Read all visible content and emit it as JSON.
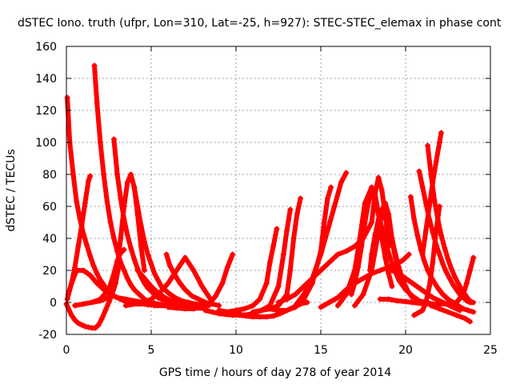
{
  "chart_data": {
    "type": "line",
    "title": "dSTEC Iono. truth (ufpr, Lon=310, Lat=-25, h=927): STEC-STEC_elemax in phase cont",
    "xlabel": "GPS time / hours of day 278 of year 2014",
    "ylabel": "dSTEC  / TECUs",
    "xlim": [
      0,
      25
    ],
    "ylim": [
      -20,
      160
    ],
    "xticks": [
      0,
      5,
      10,
      15,
      20,
      25
    ],
    "yticks": [
      -20,
      0,
      20,
      40,
      60,
      80,
      100,
      120,
      140,
      160
    ],
    "grid": true,
    "color": "#ff0000",
    "series": [
      {
        "x": [
          0.05,
          0.2,
          0.4,
          0.6,
          0.8,
          1.0,
          1.2,
          1.4,
          1.6,
          1.8,
          2.0,
          2.2,
          2.4,
          2.6,
          2.8,
          3.0,
          3.2,
          3.4,
          3.6,
          3.8,
          4.0,
          4.2,
          4.4,
          4.6,
          4.8,
          5.0,
          5.2,
          5.4,
          5.6,
          5.8
        ],
        "y": [
          128,
          100,
          80,
          63,
          52,
          43,
          36,
          29,
          23,
          18,
          14,
          11,
          8,
          6,
          4,
          3,
          2,
          1,
          0.5,
          0,
          -0.5,
          -1,
          -1,
          -1,
          -1.5,
          -1.5,
          -2,
          -2,
          -2,
          -2
        ]
      },
      {
        "x": [
          1.65,
          1.8,
          2.0,
          2.2,
          2.4,
          2.6,
          2.8,
          3.0,
          3.2,
          3.4,
          3.6,
          3.8,
          4.0,
          4.2,
          4.4,
          4.6,
          4.8,
          5.0,
          5.2,
          5.4,
          5.6,
          5.8,
          6.0,
          6.2,
          6.5
        ],
        "y": [
          148,
          125,
          100,
          80,
          63,
          50,
          40,
          32,
          25,
          20,
          15,
          11,
          8,
          6,
          4,
          2,
          1,
          0,
          -0.5,
          -1,
          -1.5,
          -2,
          -2,
          -2,
          -2.5
        ]
      },
      {
        "x": [
          0.0,
          0.3,
          0.5,
          0.7,
          0.9,
          1.1,
          1.3,
          1.5,
          1.7,
          1.9,
          2.1,
          2.3,
          2.5,
          2.7,
          2.9,
          3.1
        ],
        "y": [
          -1,
          -8,
          -11,
          -13,
          -14,
          -15,
          -15.5,
          -16,
          -16,
          -14,
          -10,
          -5,
          0,
          5,
          12,
          23
        ]
      },
      {
        "x": [
          0.1,
          0.3,
          0.5,
          0.7,
          0.9,
          1.1,
          1.3,
          1.4
        ],
        "y": [
          5,
          12,
          22,
          35,
          48,
          62,
          76,
          79
        ]
      },
      {
        "x": [
          0.05,
          0.3,
          0.6,
          1.0,
          1.4,
          1.8,
          2.2,
          2.6,
          3.0,
          3.5,
          4.0,
          4.5,
          5.0,
          5.5,
          6.0,
          6.5,
          7.0
        ],
        "y": [
          2,
          12,
          20,
          20,
          17,
          12,
          8,
          5,
          3,
          2,
          1,
          0,
          -1,
          -1.5,
          -2,
          -2,
          -2.5
        ]
      },
      {
        "x": [
          0.5,
          1.0,
          1.5,
          2.0,
          2.5,
          2.8,
          3.0,
          3.2,
          3.4
        ],
        "y": [
          -2,
          -1,
          0,
          2,
          8,
          18,
          26,
          31,
          33
        ]
      },
      {
        "x": [
          1.5,
          2.0,
          2.5,
          2.8,
          3.0,
          3.2,
          3.4,
          3.6,
          3.8,
          4.0,
          4.2,
          4.4,
          4.6
        ],
        "y": [
          0,
          1,
          3,
          10,
          22,
          40,
          60,
          75,
          80,
          72,
          55,
          35,
          20
        ]
      },
      {
        "x": [
          2.8,
          3.0,
          3.2,
          3.4,
          3.6,
          3.8,
          4.0,
          4.2,
          4.4,
          4.6,
          4.8,
          5.0,
          5.2,
          5.4,
          5.6,
          5.8,
          6.0,
          6.4,
          6.8,
          7.2,
          7.6,
          8.0
        ],
        "y": [
          102,
          80,
          65,
          52,
          42,
          34,
          27,
          21,
          16,
          12,
          9,
          7,
          5,
          3,
          2,
          1,
          0,
          -1,
          -2,
          -2.5,
          -3,
          -3
        ]
      },
      {
        "x": [
          4.0,
          4.2,
          4.4,
          4.6,
          4.8,
          5.0,
          5.2,
          5.4,
          5.6,
          5.8,
          6.0,
          6.4,
          6.8,
          7.2,
          7.6,
          8.0,
          8.4
        ],
        "y": [
          72,
          60,
          48,
          38,
          30,
          24,
          18,
          14,
          10,
          8,
          6,
          3,
          1,
          0,
          -1,
          -1.5,
          -2
        ]
      },
      {
        "x": [
          3.5,
          4.0,
          4.5,
          5.0,
          5.5,
          6.0,
          6.5,
          7.0,
          7.5,
          8.0,
          8.5
        ],
        "y": [
          -2,
          -1,
          0,
          2,
          6,
          12,
          20,
          28,
          20,
          10,
          2
        ]
      },
      {
        "x": [
          5.9,
          6.1,
          6.4,
          6.7,
          7.0,
          7.4,
          7.8,
          8.2,
          8.6,
          9.0
        ],
        "y": [
          30,
          23,
          17,
          12,
          8,
          4,
          2,
          0,
          -1,
          -2
        ]
      },
      {
        "x": [
          4.2,
          4.6,
          5.0,
          5.4,
          5.8,
          6.2,
          6.6,
          7.0,
          7.4,
          7.8,
          8.2
        ],
        "y": [
          20,
          15,
          10,
          6,
          3,
          1,
          -1,
          -2,
          -3,
          -3.5,
          -4
        ]
      },
      {
        "x": [
          6.0,
          6.5,
          7.0,
          7.5,
          8.0,
          8.4,
          8.8,
          9.2,
          9.5,
          9.8
        ],
        "y": [
          -3,
          -3.5,
          -4,
          -4,
          -3,
          -1,
          4,
          12,
          22,
          30
        ]
      },
      {
        "x": [
          8.2,
          8.6,
          9.0,
          9.4,
          9.8,
          10.2,
          10.6,
          11.0,
          11.4,
          11.8,
          12.2,
          12.6,
          13.0,
          13.4,
          13.8,
          14.2
        ],
        "y": [
          -5,
          -6,
          -7,
          -7.5,
          -8,
          -8,
          -8.5,
          -9,
          -9,
          -9,
          -8.5,
          -7,
          -5,
          -3,
          -1,
          0
        ]
      },
      {
        "x": [
          9.0,
          9.5,
          10.0,
          10.5,
          11.0,
          11.4,
          11.8,
          12.0,
          12.2,
          12.4
        ],
        "y": [
          -5,
          -6,
          -5,
          -4,
          -2,
          2,
          12,
          25,
          35,
          46
        ]
      },
      {
        "x": [
          10.0,
          10.5,
          11.0,
          11.5,
          12.0,
          12.5,
          12.8,
          13.0,
          13.2
        ],
        "y": [
          -7,
          -8,
          -7,
          -5,
          -2,
          10,
          30,
          45,
          58
        ]
      },
      {
        "x": [
          11.0,
          11.5,
          12.0,
          12.5,
          13.0,
          13.2,
          13.4,
          13.6,
          13.8
        ],
        "y": [
          -6,
          -5,
          -4,
          -2,
          5,
          20,
          40,
          55,
          65
        ]
      },
      {
        "x": [
          12.0,
          12.5,
          13.0,
          13.5,
          14.0,
          14.5,
          15.0,
          15.2,
          15.4,
          15.6
        ],
        "y": [
          -4,
          -5,
          -5,
          -3,
          2,
          12,
          32,
          50,
          65,
          72
        ]
      },
      {
        "x": [
          13.5,
          14.0,
          14.5,
          15.0,
          15.4,
          15.8,
          16.2,
          16.5
        ],
        "y": [
          -2,
          5,
          15,
          30,
          45,
          60,
          75,
          81
        ]
      },
      {
        "x": [
          12.5,
          13.0,
          13.5,
          14.0,
          14.5,
          15.0,
          15.5,
          16.0,
          16.5,
          17.0,
          17.5,
          18.0,
          18.2,
          18.4,
          18.6,
          18.8,
          19.0
        ],
        "y": [
          0,
          2,
          5,
          10,
          15,
          20,
          25,
          30,
          32,
          35,
          40,
          50,
          68,
          78,
          70,
          55,
          35
        ]
      },
      {
        "x": [
          16.0,
          16.5,
          17.0,
          17.3,
          17.6,
          18.0,
          18.4,
          18.8,
          19.2,
          19.6,
          20.0,
          20.4,
          20.8,
          21.2,
          21.6,
          22.0
        ],
        "y": [
          -2,
          5,
          20,
          40,
          62,
          72,
          55,
          38,
          24,
          14,
          8,
          4,
          1,
          0,
          -1,
          -1.5
        ]
      },
      {
        "x": [
          16.8,
          17.0,
          17.2,
          17.4,
          17.6,
          17.8,
          18.0,
          18.2,
          18.4,
          18.6,
          18.8,
          19.0,
          19.2
        ],
        "y": [
          5,
          12,
          22,
          35,
          50,
          62,
          70,
          68,
          55,
          40,
          28,
          18,
          10
        ]
      },
      {
        "x": [
          15.0,
          15.5,
          16.0,
          16.5,
          17.0,
          17.5,
          18.0,
          18.5,
          19.0,
          19.4,
          19.8,
          20.2
        ],
        "y": [
          -3,
          0,
          3,
          8,
          12,
          15,
          18,
          20,
          22,
          24,
          26,
          30
        ]
      },
      {
        "x": [
          17.0,
          17.5,
          18.0,
          18.5,
          18.8,
          19.0,
          19.2,
          19.4,
          19.6,
          19.8,
          20.0,
          20.2,
          20.4
        ],
        "y": [
          -2,
          5,
          20,
          50,
          62,
          55,
          40,
          30,
          22,
          15,
          10,
          6,
          3
        ]
      },
      {
        "x": [
          17.9,
          18.0,
          18.2,
          18.4,
          18.6,
          18.8,
          19.0,
          19.2,
          19.4,
          19.6,
          19.8,
          20.0
        ],
        "y": [
          20,
          30,
          42,
          52,
          58,
          62,
          50,
          38,
          28,
          20,
          14,
          8
        ]
      },
      {
        "x": [
          18.5,
          19.0,
          19.5,
          20.0,
          20.4,
          20.8,
          21.2,
          21.6,
          22.0
        ],
        "y": [
          2,
          2,
          1,
          0.5,
          0,
          -0.5,
          -1,
          -1,
          -1
        ]
      },
      {
        "x": [
          20.8,
          21.0,
          21.2,
          21.4,
          21.6,
          21.8,
          22.0,
          22.2,
          22.4,
          22.6,
          22.8,
          23.0,
          23.2,
          23.4,
          23.6,
          23.8,
          24.0
        ],
        "y": [
          82,
          72,
          62,
          52,
          44,
          36,
          30,
          24,
          19,
          15,
          11,
          8,
          5,
          3,
          1,
          0,
          0
        ]
      },
      {
        "x": [
          21.3,
          21.5,
          21.7,
          21.9,
          22.1,
          22.3,
          22.5,
          22.7,
          22.9,
          23.1,
          23.3,
          23.5,
          23.7,
          23.9
        ],
        "y": [
          98,
          80,
          64,
          52,
          42,
          34,
          27,
          21,
          16,
          12,
          8,
          5,
          2,
          0
        ]
      },
      {
        "x": [
          20.3,
          20.5,
          20.7,
          20.9,
          21.1,
          21.3,
          21.6,
          21.9,
          22.2,
          22.5,
          22.8,
          23.1,
          23.4,
          23.7,
          24.0
        ],
        "y": [
          66,
          52,
          42,
          33,
          26,
          20,
          14,
          9,
          5,
          2,
          0,
          -2,
          -4,
          -5,
          -6
        ]
      },
      {
        "x": [
          21.0,
          21.2,
          21.4,
          21.6,
          21.8,
          22.0,
          22.1
        ],
        "y": [
          30,
          45,
          60,
          75,
          88,
          100,
          106
        ]
      },
      {
        "x": [
          20.5,
          21.0,
          21.2,
          21.4,
          21.6,
          21.8,
          22.0
        ],
        "y": [
          -8,
          -5,
          0,
          10,
          25,
          45,
          60
        ]
      },
      {
        "x": [
          22.0,
          22.5,
          23.0,
          23.4,
          23.6,
          23.8,
          24.0
        ],
        "y": [
          -1,
          -1,
          0,
          5,
          12,
          20,
          28
        ]
      },
      {
        "x": [
          21.5,
          22.0,
          22.5,
          23.0,
          23.5,
          23.8
        ],
        "y": [
          -2,
          -4,
          -6,
          -8,
          -10,
          -12
        ]
      },
      {
        "x": [
          19.2,
          19.6,
          20.0,
          20.4,
          20.8,
          21.2,
          21.6,
          22.0,
          22.4,
          22.8,
          23.2
        ],
        "y": [
          20,
          18,
          15,
          12,
          9,
          6,
          3,
          1,
          -1,
          -3,
          -5
        ]
      }
    ]
  }
}
